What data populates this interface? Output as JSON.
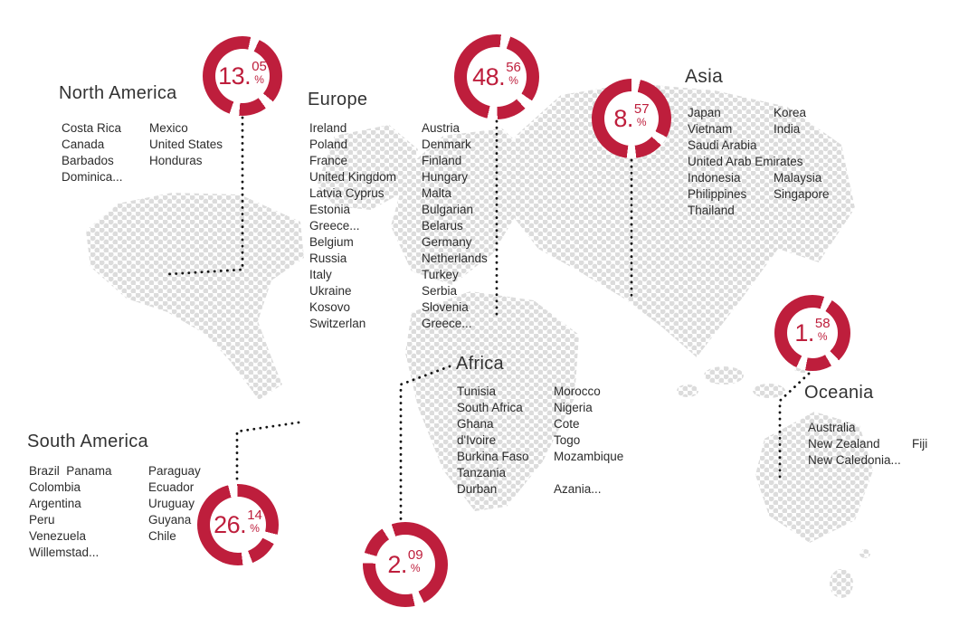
{
  "format": {
    "dot": "."
  },
  "colors": {
    "accent": "#be1e3c",
    "map_dot": "#dcdcdc",
    "leader": "#141414",
    "text": "#2c2c2c"
  },
  "regions": [
    {
      "name": "North America",
      "percent": 13.05,
      "percent_int": "13",
      "percent_dec": "05",
      "percent_sign": "%",
      "columns": [
        [
          "Costa Rica",
          "Canada",
          "Barbados",
          "Dominica..."
        ],
        [
          "Mexico",
          "United States",
          "Honduras"
        ]
      ]
    },
    {
      "name": "Europe",
      "percent": 48.56,
      "percent_int": "48",
      "percent_dec": "56",
      "percent_sign": "%",
      "columns": [
        [
          "Ireland",
          "Poland",
          "France",
          "United Kingdom",
          "Latvia Cyprus",
          "Estonia",
          "Greece...",
          "Belgium",
          "Russia",
          "Italy",
          "Ukraine",
          "Kosovo",
          "Switzerlan"
        ],
        [
          "Austria",
          "Denmark",
          "Finland",
          "Hungary",
          "Malta",
          "Bulgarian",
          "Belarus",
          "Germany",
          "Netherlands",
          "Turkey",
          "Serbia",
          "Slovenia",
          "Greece..."
        ]
      ]
    },
    {
      "name": "Asia",
      "percent": 8.57,
      "percent_int": "8",
      "percent_dec": "57",
      "percent_sign": "%",
      "columns": [
        [
          "Japan",
          "Vietnam",
          "Saudi Arabia",
          "United Arab Emirates",
          "Indonesia",
          "Philippines",
          "Thailand"
        ],
        [
          "Korea",
          "India",
          "",
          "",
          "Malaysia",
          "Singapore"
        ]
      ]
    },
    {
      "name": "South America",
      "percent": 26.14,
      "percent_int": "26",
      "percent_dec": "14",
      "percent_sign": "%",
      "columns": [
        [
          "Brazil  Panama",
          "Colombia",
          "Argentina",
          "Peru",
          "Venezuela",
          "Willemstad..."
        ],
        [
          "Paraguay",
          "Ecuador",
          "Uruguay",
          "Guyana",
          "Chile"
        ]
      ]
    },
    {
      "name": "Africa",
      "percent": 2.09,
      "percent_int": "2",
      "percent_dec": "09",
      "percent_sign": "%",
      "columns": [
        [
          "Tunisia",
          "South Africa",
          "Ghana",
          "d'Ivoire",
          "Burkina Faso",
          "Tanzania",
          "Durban"
        ],
        [
          "Morocco",
          "Nigeria",
          "Cote",
          "Togo",
          "Mozambique",
          "",
          "Azania..."
        ]
      ]
    },
    {
      "name": "Oceania",
      "percent": 1.58,
      "percent_int": "1",
      "percent_dec": "58",
      "percent_sign": "%",
      "columns": [
        [
          "Australia",
          "New Zealand",
          "New Caledonia..."
        ],
        [
          "",
          "Fiji",
          ""
        ]
      ]
    }
  ],
  "chart_data": {
    "type": "pie",
    "title": "",
    "categories": [
      "North America",
      "Europe",
      "Asia",
      "South America",
      "Africa",
      "Oceania"
    ],
    "values": [
      13.05,
      48.56,
      8.57,
      26.14,
      2.09,
      1.58
    ],
    "unit": "%",
    "legend_position": "none",
    "notes": "six donut badges placed over a dotted world map, one per continent"
  }
}
